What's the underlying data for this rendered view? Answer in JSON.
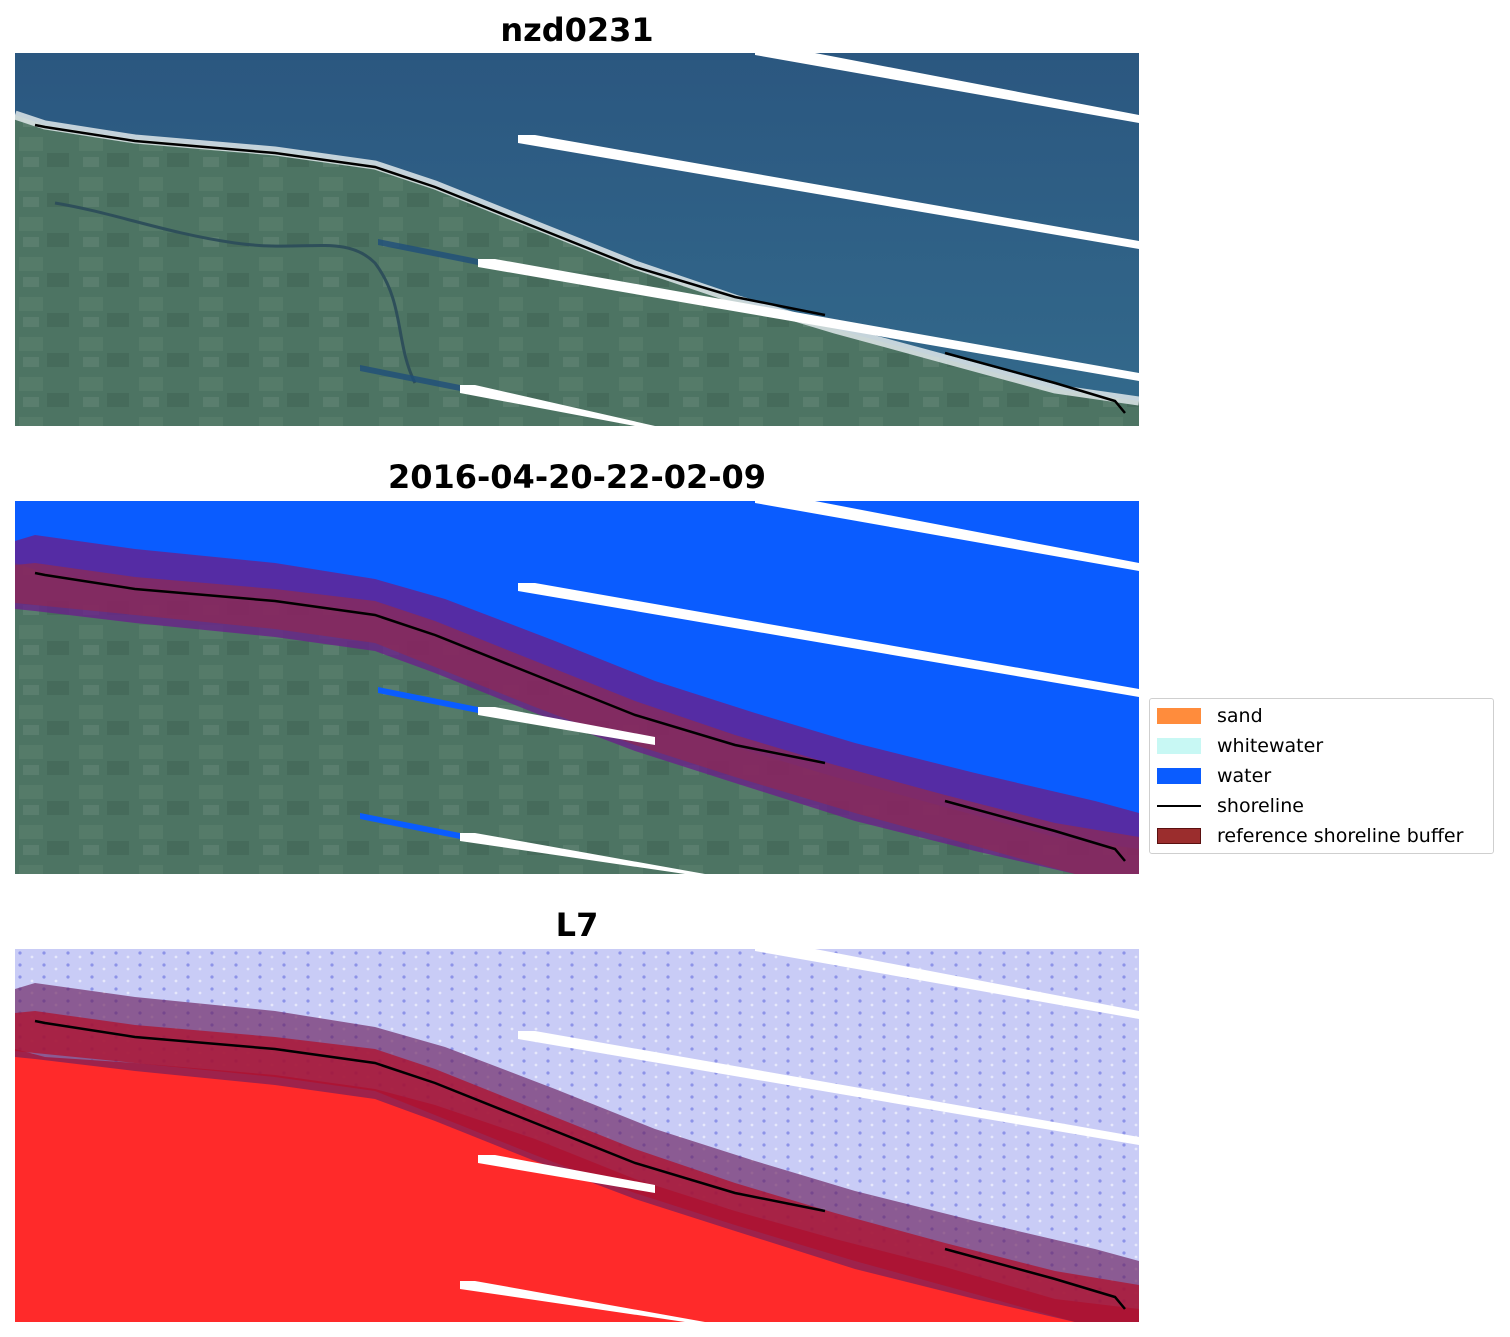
{
  "panels": [
    {
      "title": "nzd0231",
      "view": "rgb"
    },
    {
      "title": "2016-04-20-22-02-09",
      "view": "classified"
    },
    {
      "title": "L7",
      "view": "index"
    }
  ],
  "legend": {
    "items": [
      {
        "label": "sand",
        "kind": "patch",
        "color": "#ff8c3c"
      },
      {
        "label": "whitewater",
        "kind": "patch",
        "color": "#c8f8f4"
      },
      {
        "label": "water",
        "kind": "patch",
        "color": "#0a5cff"
      },
      {
        "label": "shoreline",
        "kind": "line",
        "color": "#000000"
      },
      {
        "label": "reference shoreline buffer",
        "kind": "patch",
        "color": "#9b2d2d"
      }
    ]
  },
  "colors": {
    "ocean": "#2f5d85",
    "land": "#4f7562",
    "water_class": "#0a5cff",
    "buffer": "#6a1f8a",
    "index_land": "#ff2a2a",
    "index_water": "#c9ccf6"
  }
}
